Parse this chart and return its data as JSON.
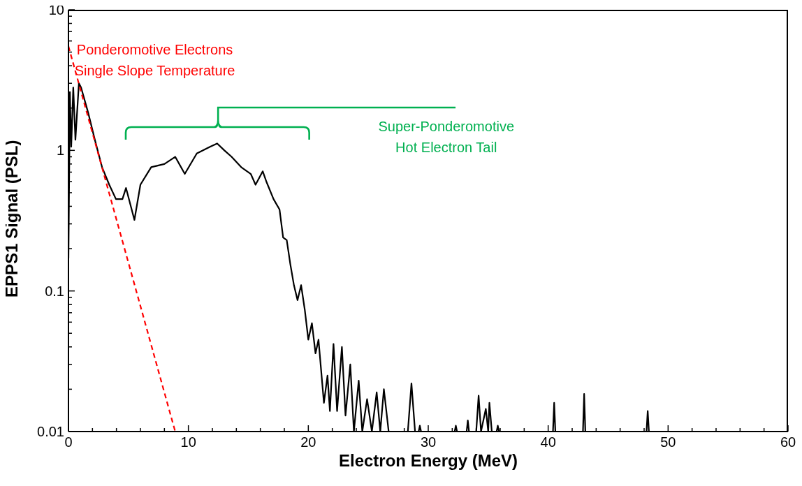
{
  "chart_data": {
    "type": "line",
    "xlabel": "Electron Energy (MeV)",
    "ylabel": "EPPS1 Signal (PSL)",
    "log": "y",
    "xlim": [
      0,
      60
    ],
    "xticks": [
      0,
      {
        "value": 2,
        "label": null
      },
      {
        "value": 4,
        "label": null
      },
      {
        "value": 6,
        "label": null
      },
      {
        "value": 8,
        "label": null
      },
      10,
      {
        "value": 12,
        "label": null
      },
      {
        "value": 14,
        "label": null
      },
      {
        "value": 16,
        "label": null
      },
      {
        "value": 18,
        "label": null
      },
      20,
      {
        "value": 22,
        "label": null
      },
      {
        "value": 24,
        "label": null
      },
      {
        "value": 26,
        "label": null
      },
      {
        "value": 28,
        "label": null
      },
      30,
      {
        "value": 32,
        "label": null
      },
      {
        "value": 34,
        "label": null
      },
      {
        "value": 36,
        "label": null
      },
      {
        "value": 38,
        "label": null
      },
      40,
      {
        "value": 42,
        "label": null
      },
      {
        "value": 44,
        "label": null
      },
      {
        "value": 46,
        "label": null
      },
      {
        "value": 48,
        "label": null
      },
      50,
      {
        "value": 52,
        "label": null
      },
      {
        "value": 54,
        "label": null
      },
      {
        "value": 56,
        "label": null
      },
      {
        "value": 58,
        "label": null
      },
      60
    ],
    "ylim": [
      0.01,
      10
    ],
    "yticks": [
      0.01,
      {
        "value": 0.02,
        "label": null
      },
      {
        "value": 0.03,
        "label": null
      },
      {
        "value": 0.04,
        "label": null
      },
      {
        "value": 0.05,
        "label": null
      },
      {
        "value": 0.06,
        "label": null
      },
      {
        "value": 0.07,
        "label": null
      },
      {
        "value": 0.08,
        "label": null
      },
      {
        "value": 0.09,
        "label": null
      },
      0.1,
      {
        "value": 0.2,
        "label": null
      },
      {
        "value": 0.3,
        "label": null
      },
      {
        "value": 0.4,
        "label": null
      },
      {
        "value": 0.5,
        "label": null
      },
      {
        "value": 0.6,
        "label": null
      },
      {
        "value": 0.7,
        "label": null
      },
      {
        "value": 0.8,
        "label": null
      },
      {
        "value": 0.9,
        "label": null
      },
      1,
      {
        "value": 2,
        "label": null
      },
      {
        "value": 3,
        "label": null
      },
      {
        "value": 4,
        "label": null
      },
      {
        "value": 5,
        "label": null
      },
      {
        "value": 6,
        "label": null
      },
      {
        "value": 7,
        "label": null
      },
      {
        "value": 8,
        "label": null
      },
      {
        "value": 9,
        "label": null
      },
      10
    ],
    "series": [
      {
        "color": "#000000",
        "line_style": "solid",
        "x": [
          0,
          0.12,
          0.23,
          0.4,
          0.58,
          0.87,
          1.05,
          1.63,
          2.2,
          2.8,
          3.4,
          3.96,
          4.5,
          4.8,
          5.5,
          6.0,
          6.9,
          8.0,
          8.9,
          9.7,
          10.7,
          11.8,
          12.4,
          13.0,
          13.6,
          14.4,
          15.2,
          15.6,
          16.2,
          16.5,
          17.1,
          17.6,
          17.9,
          18.2,
          18.5,
          18.8,
          19.1,
          19.4,
          19.7,
          20.0,
          20.3,
          20.6,
          20.85,
          21.3,
          21.6,
          21.8,
          22.1,
          22.4,
          22.8,
          23.1,
          23.5,
          23.8,
          24.2,
          24.5,
          24.9,
          25.3,
          25.7,
          26.0,
          26.3,
          26.7,
          27.5,
          28.3,
          28.6,
          28.9,
          29.1,
          29.2,
          29.3,
          29.4,
          30.0,
          32.2,
          32.3,
          32.4,
          32.8,
          33.2,
          33.3,
          33.4,
          33.7,
          34.0,
          34.2,
          34.4,
          34.8,
          35.0,
          35.1,
          35.3,
          35.5,
          35.7,
          35.8,
          35.9,
          37.0,
          40.4,
          40.5,
          40.6,
          42.0,
          42.9,
          43.0,
          43.1,
          45.0,
          48.2,
          48.3,
          48.4
        ],
        "values": [
          0.17,
          2.6,
          1.06,
          2.8,
          1.19,
          3.0,
          2.8,
          1.87,
          1.19,
          0.76,
          0.57,
          0.45,
          0.45,
          0.54,
          0.32,
          0.57,
          0.76,
          0.8,
          0.9,
          0.68,
          0.95,
          1.06,
          1.12,
          1.0,
          0.9,
          0.76,
          0.68,
          0.57,
          0.71,
          0.6,
          0.45,
          0.38,
          0.24,
          0.23,
          0.155,
          0.11,
          0.086,
          0.11,
          0.074,
          0.045,
          0.059,
          0.036,
          0.045,
          0.016,
          0.025,
          0.014,
          0.042,
          0.014,
          0.04,
          0.013,
          0.03,
          0.01,
          0.023,
          0.01,
          0.017,
          0.01,
          0.019,
          0.01,
          0.02,
          0.01,
          null,
          0.01,
          0.022,
          0.01,
          null,
          0.01,
          0.011,
          0.01,
          null,
          0.01,
          0.011,
          0.01,
          null,
          0.01,
          0.012,
          0.01,
          null,
          0.01,
          0.018,
          0.01,
          0.0145,
          0.01,
          0.016,
          0.01,
          null,
          0.01,
          0.011,
          0.01,
          null,
          0.01,
          0.016,
          0.01,
          null,
          0.01,
          0.0185,
          0.01,
          null,
          0.01,
          0.014,
          0.01
        ]
      },
      {
        "type": "line",
        "color": "#ff0000",
        "line_style": "dashed",
        "x": [
          0,
          8.9
        ],
        "values": [
          5.5,
          0.01
        ]
      }
    ],
    "annotations": [
      "Ponderomotive Electrons\nSingle Slope Temperature",
      "Super-Ponderomotive\nHot Electron Tail"
    ]
  }
}
